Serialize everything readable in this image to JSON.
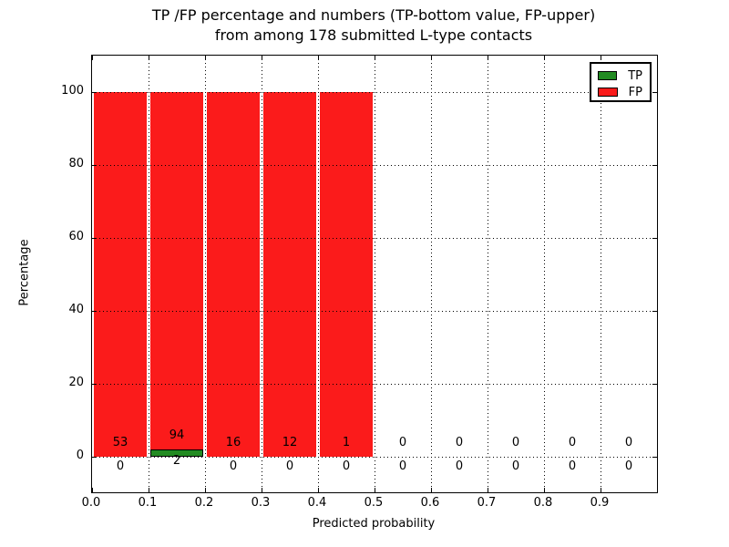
{
  "figure": {
    "title_line1": "TP /FP percentage and numbers (TP-bottom value, FP-upper)",
    "title_line2": "from among 178 submitted L-type contacts",
    "xlabel": "Predicted probability",
    "ylabel": "Percentage"
  },
  "legend": {
    "position": "upper-right",
    "items": [
      {
        "label": "TP",
        "color": "#228b22"
      },
      {
        "label": "FP",
        "color": "#fb1b1b"
      }
    ]
  },
  "colors": {
    "tp": "#228b22",
    "fp": "#fb1b1b",
    "grid": "#000000",
    "axis": "#000000",
    "background": "#ffffff"
  },
  "chart_data": {
    "type": "bar",
    "stacked": true,
    "title": "TP /FP percentage and numbers (TP-bottom value, FP-upper) from among 178 submitted L-type contacts",
    "xlabel": "Predicted probability",
    "ylabel": "Percentage",
    "total_contacts": 178,
    "grid": "dotted, drawn above bars",
    "legend_position": "upper right",
    "xlim": [
      0.0,
      1.0
    ],
    "ylim": [
      -10,
      110
    ],
    "y_ticks": [
      0,
      20,
      40,
      60,
      80,
      100
    ],
    "x_tick_values": [
      0.0,
      0.1,
      0.2,
      0.3,
      0.4,
      0.5,
      0.6,
      0.7,
      0.8,
      0.9
    ],
    "x_tick_labels": [
      "0.0",
      "0.1",
      "0.2",
      "0.3",
      "0.4",
      "0.5",
      "0.6",
      "0.7",
      "0.8",
      "0.9"
    ],
    "bins": [
      {
        "range": [
          0.0,
          0.1
        ],
        "tp_count": 0,
        "fp_count": 53,
        "tp_percent": 0,
        "fp_percent": 100
      },
      {
        "range": [
          0.1,
          0.2
        ],
        "tp_count": 2,
        "fp_count": 94,
        "tp_percent": 2.08,
        "fp_percent": 97.92
      },
      {
        "range": [
          0.2,
          0.3
        ],
        "tp_count": 0,
        "fp_count": 16,
        "tp_percent": 0,
        "fp_percent": 100
      },
      {
        "range": [
          0.3,
          0.4
        ],
        "tp_count": 0,
        "fp_count": 12,
        "tp_percent": 0,
        "fp_percent": 100
      },
      {
        "range": [
          0.4,
          0.5
        ],
        "tp_count": 0,
        "fp_count": 1,
        "tp_percent": 0,
        "fp_percent": 100
      },
      {
        "range": [
          0.5,
          0.6
        ],
        "tp_count": 0,
        "fp_count": 0,
        "tp_percent": 0,
        "fp_percent": 0
      },
      {
        "range": [
          0.6,
          0.7
        ],
        "tp_count": 0,
        "fp_count": 0,
        "tp_percent": 0,
        "fp_percent": 0
      },
      {
        "range": [
          0.7,
          0.8
        ],
        "tp_count": 0,
        "fp_count": 0,
        "tp_percent": 0,
        "fp_percent": 0
      },
      {
        "range": [
          0.8,
          0.9
        ],
        "tp_count": 0,
        "fp_count": 0,
        "tp_percent": 0,
        "fp_percent": 0
      },
      {
        "range": [
          0.9,
          1.0
        ],
        "tp_count": 0,
        "fp_count": 0,
        "tp_percent": 0,
        "fp_percent": 0
      }
    ]
  }
}
